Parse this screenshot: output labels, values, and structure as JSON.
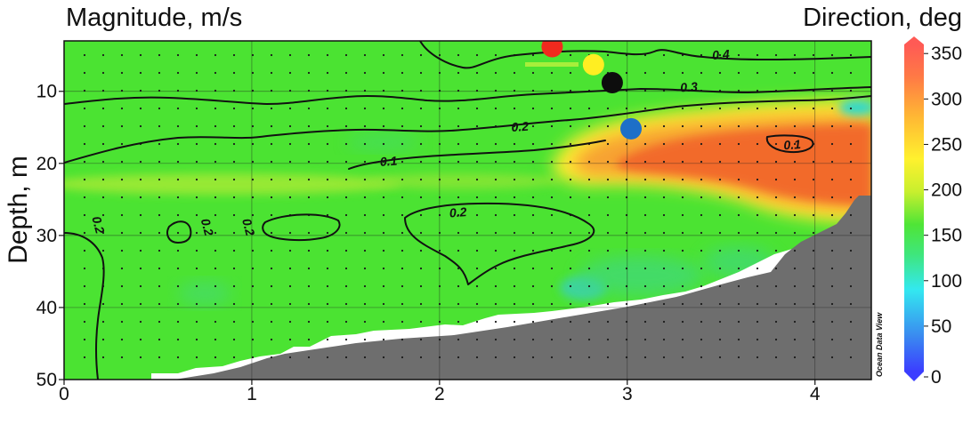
{
  "titles": {
    "left": "Magnitude, m/s",
    "right": "Direction, deg",
    "ylabel": "Depth, m",
    "watermark": "Ocean Data View"
  },
  "chart_data": {
    "type": "heatmap",
    "title": "",
    "xlabel": "",
    "ylabel": "Depth, m",
    "xlim": [
      0,
      4.3
    ],
    "ylim": [
      50,
      3
    ],
    "y_inverted": true,
    "x_ticks": [
      "0",
      "1",
      "2",
      "3",
      "4"
    ],
    "y_ticks": [
      "10",
      "20",
      "30",
      "40",
      "50"
    ],
    "grid": true,
    "fill_variable": {
      "name": "Direction, deg",
      "colorbar_ticks": [
        "0",
        "50",
        "100",
        "150",
        "200",
        "250",
        "300",
        "350"
      ],
      "range": [
        0,
        360
      ],
      "colors": {
        "background_green": "#4be332",
        "high_orange": "#f26a2a",
        "yellow": "#ffe536",
        "cyan": "#2fd6cf",
        "blue": "#2f45ff"
      }
    },
    "contour_variable": {
      "name": "Magnitude, m/s",
      "contour_labels": [
        {
          "label": "0.4",
          "x": 3.5,
          "y": 5.5
        },
        {
          "label": "0.3",
          "x": 3.33,
          "y": 10.0
        },
        {
          "label": "0.2",
          "x": 2.43,
          "y": 15.5
        },
        {
          "label": "0.1",
          "x": 1.73,
          "y": 20.3
        },
        {
          "label": "0.1",
          "x": 3.88,
          "y": 18.0
        },
        {
          "label": "0.2",
          "x": 2.1,
          "y": 27.4
        },
        {
          "label": "0.2",
          "x": 0.16,
          "y": 28.7
        },
        {
          "label": "0.2",
          "x": 0.74,
          "y": 29.0
        },
        {
          "label": "0.2",
          "x": 0.96,
          "y": 29.0
        }
      ]
    },
    "markers": [
      {
        "color": "#f02a1e",
        "x": 2.6,
        "y": 3.8
      },
      {
        "color": "#ffee22",
        "x": 2.82,
        "y": 6.3
      },
      {
        "color": "#0d0d0d",
        "x": 2.92,
        "y": 8.8
      },
      {
        "color": "#1e6fc8",
        "x": 3.02,
        "y": 15.2
      }
    ],
    "bathymetry_color": "#6e6e6e"
  }
}
